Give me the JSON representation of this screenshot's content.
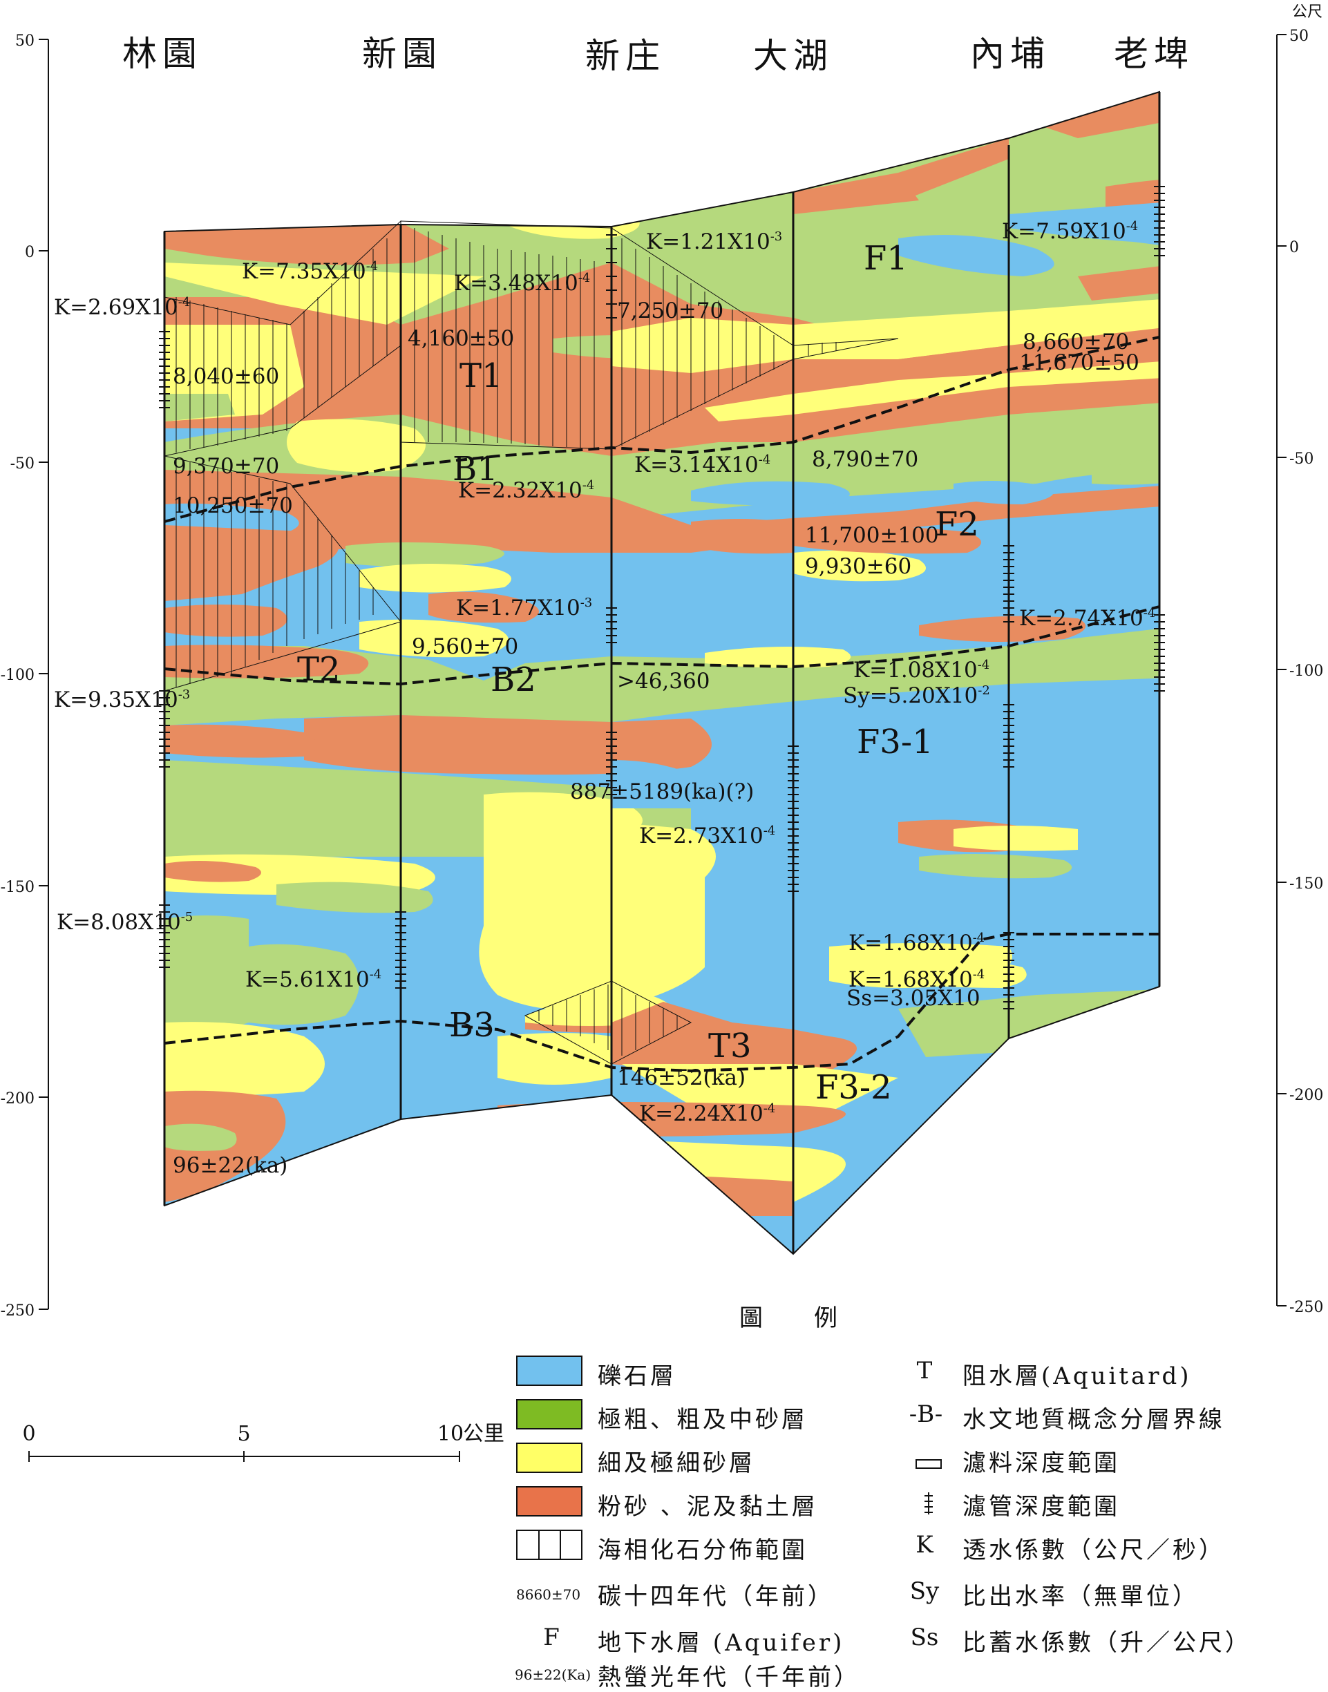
{
  "stations": [
    "林園",
    "新園",
    "新庄",
    "大湖",
    "內埔",
    "老埤"
  ],
  "left_axis_ticks": [
    "50",
    "0",
    "-50",
    "-100",
    "-150",
    "-200",
    "-250"
  ],
  "right_axis_unit": "公尺",
  "right_axis_ticks": [
    "50",
    "0",
    "-50",
    "-100",
    "-150",
    "-200",
    "-250"
  ],
  "layers": {
    "aquifers": [
      "F1",
      "F2",
      "F3-1",
      "F3-2"
    ],
    "aquitards": [
      "T1",
      "T2",
      "T3"
    ],
    "boundaries": [
      "B1",
      "B2",
      "B3"
    ]
  },
  "annotations": {
    "k_269": "K=2.69X10",
    "k_269_exp": "-4",
    "k_735": "K=7.35X10",
    "k_735_exp": "-4",
    "k_348": "K=3.48X10",
    "k_348_exp": "-4",
    "k_121": "K=1.21X10",
    "k_121_exp": "-3",
    "k_759": "K=7.59X10",
    "k_759_exp": "-4",
    "d_8040": "8,040±60",
    "d_4160": "4,160±50",
    "d_7250": "7,250±70",
    "d_8660": "8,660±70",
    "d_11670": "11,670±50",
    "d_9370": "9,370±70",
    "d_10250": "10,250±70",
    "k_314": "K=3.14X10",
    "k_314_exp": "-4",
    "d_8790": "8,790±70",
    "k_232": "K=2.32X10",
    "k_232_exp": "-4",
    "d_11700": "11,700±100",
    "d_9930": "9,930±60",
    "k_177": "K=1.77X10",
    "k_177_exp": "-3",
    "k_274": "K=2.74X10",
    "k_274_exp": "-4",
    "d_9560": "9,560±70",
    "k_935": "K=9.35X10",
    "k_935_exp": "-3",
    "d_46360": ">46,360",
    "k_108": "K=1.08X10",
    "k_108_exp": "-4",
    "sy_520": "Sy=5.20X10",
    "sy_520_exp": "-2",
    "d_887": "887±5189(ka)(?)",
    "k_273": "K=2.73X10",
    "k_273_exp": "-4",
    "k_808": "K=8.08X10",
    "k_808_exp": "-5",
    "k_168a": "K=1.68X10",
    "k_168a_exp": "-4",
    "k_561": "K=5.61X10",
    "k_561_exp": "-4",
    "k_168b": "K=1.68X10",
    "k_168b_exp": "-4",
    "ss_305": "Ss=3.05X10",
    "d_146": "146±52(ka)",
    "k_224": "K=2.24X10",
    "k_224_exp": "-4",
    "d_96": "96±22(ka)"
  },
  "scale_bar": {
    "ticks": [
      "0",
      "5",
      "10"
    ],
    "unit": "公里"
  },
  "legend": {
    "title": "圖　例",
    "swatches": [
      {
        "label": "礫石層",
        "color": "#72c1ee"
      },
      {
        "label": "極粗、粗及中砂層",
        "color": "#7ebb23"
      },
      {
        "label": "細及極細砂層",
        "color": "#ffff66"
      },
      {
        "label": "粉砂 、泥及黏土層",
        "color": "#e8734a"
      },
      {
        "label": "海相化石分佈範圍",
        "color": "#ffffff"
      }
    ],
    "c14_example": "8660±70",
    "c14_label": "碳十四年代（年前）",
    "aquifer_symbol": "F",
    "aquifer_label": "地下水層 (Aquifer)",
    "tl_example": "96±22(Ka)",
    "tl_label": "熱螢光年代（千年前）",
    "right_items": [
      {
        "symbol": "T",
        "label": "阻水層(Aquitard)"
      },
      {
        "symbol": "-B-",
        "label": "水文地質概念分層界線"
      },
      {
        "symbol": "filter-box",
        "label": "濾料深度範圍"
      },
      {
        "symbol": "screen-mark",
        "label": "濾管深度範圍"
      },
      {
        "symbol": "K",
        "label": "透水係數（公尺／秒）"
      },
      {
        "symbol": "Sy",
        "label": "比出水率（無單位）"
      },
      {
        "symbol": "Ss",
        "label": "比蓄水係數（升／公尺）"
      }
    ]
  },
  "colors": {
    "gravel": "#72c1ee",
    "coarse_sand": "#b5d97d",
    "fine_sand": "#ffff7a",
    "silt_clay": "#e88c60"
  }
}
